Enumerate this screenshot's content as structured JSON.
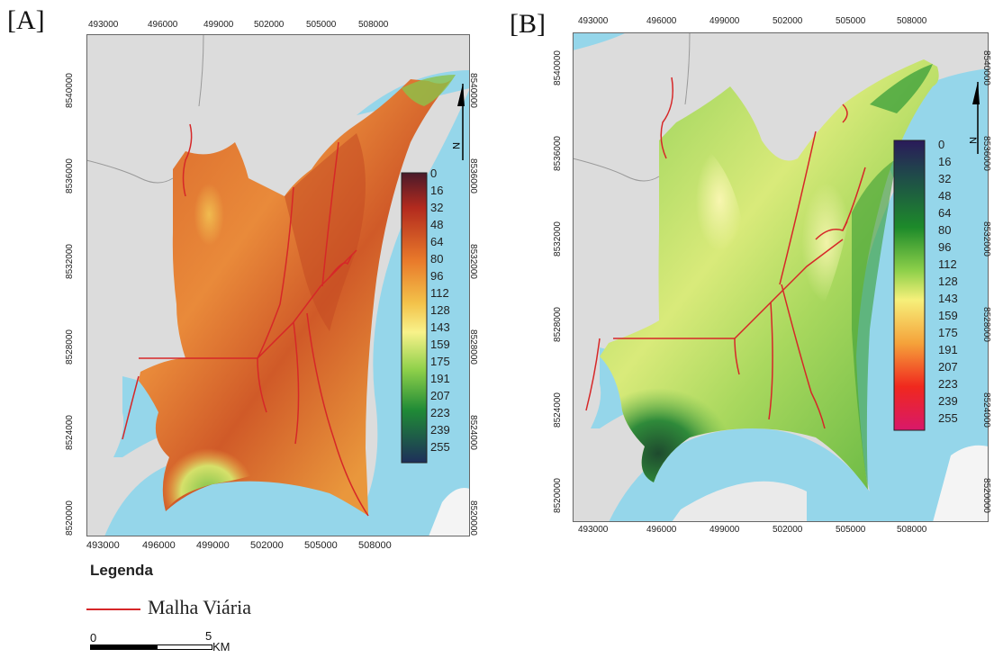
{
  "panels": [
    {
      "label": "[A]",
      "x_ticks": [
        "493000",
        "496000",
        "499000",
        "502000",
        "505000",
        "508000"
      ],
      "y_ticks": [
        "8540000",
        "8536000",
        "8532000",
        "8528000",
        "8524000",
        "8520000"
      ],
      "ramp_labels": [
        "0",
        "16",
        "32",
        "48",
        "64",
        "80",
        "96",
        "112",
        "128",
        "143",
        "159",
        "175",
        "191",
        "207",
        "223",
        "239",
        "255"
      ],
      "north_label": "N"
    },
    {
      "label": "[B]",
      "x_ticks": [
        "493000",
        "496000",
        "499000",
        "502000",
        "505000",
        "508000"
      ],
      "y_ticks": [
        "8540000",
        "8536000",
        "8532000",
        "8528000",
        "8524000",
        "8520000"
      ],
      "ramp_labels": [
        "0",
        "16",
        "32",
        "48",
        "64",
        "80",
        "96",
        "112",
        "128",
        "143",
        "159",
        "175",
        "191",
        "207",
        "223",
        "239",
        "255"
      ],
      "north_label": "N"
    }
  ],
  "legend": {
    "title": "Legenda",
    "road_label": "Malha Viária",
    "road_color": "#d62728"
  },
  "scalebar": {
    "start": "0",
    "mid": "5",
    "unit": "KM"
  },
  "colors": {
    "water": "#95d6ea",
    "land_gray": "#dcdcdc",
    "road": "#d62728"
  }
}
